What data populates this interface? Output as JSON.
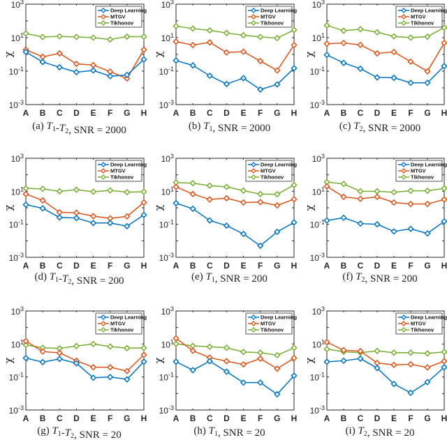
{
  "chart_data": [
    {
      "type": "line",
      "panel": "a",
      "caption": {
        "prefix": "(a) ",
        "var": "T1-T2",
        "suffix": ", SNR = 2000"
      },
      "ylabel": "χ",
      "yscale": "log",
      "ylim": [
        0.001,
        1000
      ],
      "yticks": [
        "10^-3",
        "10^-1",
        "10^1",
        "10^3"
      ],
      "categories": [
        "A",
        "B",
        "C",
        "D",
        "E",
        "F",
        "G",
        "H"
      ],
      "legend_position": "top-right",
      "series": [
        {
          "name": "Deep Learning",
          "color": "#0072BD",
          "values": [
            1.4,
            0.35,
            0.17,
            0.087,
            0.11,
            0.05,
            0.059,
            0.5
          ]
        },
        {
          "name": "MTGV",
          "color": "#D95319",
          "values": [
            1.9,
            0.72,
            1.15,
            0.27,
            0.23,
            0.093,
            0.036,
            1.9
          ]
        },
        {
          "name": "Tikhonov",
          "color": "#77AC30",
          "values": [
            17.8,
            11,
            12,
            11,
            10,
            7.8,
            11.5,
            11.5
          ]
        }
      ]
    },
    {
      "type": "line",
      "panel": "b",
      "caption": {
        "prefix": "(b) ",
        "var": "T1",
        "suffix": ", SNR = 2000"
      },
      "ylabel": "χ",
      "yscale": "log",
      "ylim": [
        0.001,
        1000
      ],
      "yticks": [
        "10^-3",
        "10^-1",
        "10^1",
        "10^3"
      ],
      "categories": [
        "A",
        "B",
        "C",
        "D",
        "E",
        "F",
        "G",
        "H"
      ],
      "legend_position": "top-right",
      "series": [
        {
          "name": "Deep Learning",
          "color": "#0072BD",
          "values": [
            0.43,
            0.22,
            0.053,
            0.017,
            0.038,
            0.008,
            0.016,
            0.15
          ]
        },
        {
          "name": "MTGV",
          "color": "#D95319",
          "values": [
            5.8,
            3.6,
            5.2,
            1.3,
            1.45,
            0.4,
            0.11,
            3.6
          ]
        },
        {
          "name": "Tikhonov",
          "color": "#77AC30",
          "values": [
            49,
            35,
            27,
            19,
            14,
            11,
            9.4,
            29
          ]
        }
      ]
    },
    {
      "type": "line",
      "panel": "c",
      "caption": {
        "prefix": "(c) ",
        "var": "T2",
        "suffix": ", SNR = 2000"
      },
      "ylabel": "χ",
      "yscale": "log",
      "ylim": [
        0.001,
        1000
      ],
      "yticks": [
        "10^-3",
        "10^-1",
        "10^1",
        "10^3"
      ],
      "categories": [
        "A",
        "B",
        "C",
        "D",
        "E",
        "F",
        "G",
        "H"
      ],
      "legend_position": "top-right",
      "series": [
        {
          "name": "Deep Learning",
          "color": "#0072BD",
          "values": [
            0.93,
            0.31,
            0.14,
            0.042,
            0.04,
            0.02,
            0.02,
            0.2
          ]
        },
        {
          "name": "MTGV",
          "color": "#D95319",
          "values": [
            4.3,
            4.8,
            3.7,
            1.15,
            1.4,
            0.37,
            0.097,
            4.8
          ]
        },
        {
          "name": "Tikhonov",
          "color": "#77AC30",
          "values": [
            54,
            26,
            32,
            21,
            12,
            10,
            11.5,
            40
          ]
        }
      ]
    },
    {
      "type": "line",
      "panel": "d",
      "caption": {
        "prefix": "(d) ",
        "var": "T1-T2",
        "suffix": ", SNR = 200"
      },
      "ylabel": "χ",
      "yscale": "log",
      "ylim": [
        0.001,
        1000
      ],
      "yticks": [
        "10^-3",
        "10^-1",
        "10^1",
        "10^3"
      ],
      "categories": [
        "A",
        "B",
        "C",
        "D",
        "E",
        "F",
        "G",
        "H"
      ],
      "legend_position": "top-right",
      "series": [
        {
          "name": "Deep Learning",
          "color": "#0072BD",
          "values": [
            1.55,
            0.93,
            0.26,
            0.24,
            0.12,
            0.12,
            0.077,
            0.37
          ]
        },
        {
          "name": "MTGV",
          "color": "#D95319",
          "values": [
            6.8,
            2.8,
            0.53,
            0.5,
            0.31,
            0.23,
            0.3,
            2.1
          ]
        },
        {
          "name": "Tikhonov",
          "color": "#77AC30",
          "values": [
            15,
            14,
            10,
            12.5,
            9.4,
            11.4,
            8.8,
            9.4
          ]
        }
      ]
    },
    {
      "type": "line",
      "panel": "e",
      "caption": {
        "prefix": "(e) ",
        "var": "T1",
        "suffix": ", SNR = 200"
      },
      "ylabel": "χ",
      "yscale": "log",
      "ylim": [
        0.001,
        1000
      ],
      "yticks": [
        "10^-3",
        "10^-1",
        "10^1",
        "10^3"
      ],
      "categories": [
        "A",
        "B",
        "C",
        "D",
        "E",
        "F",
        "G",
        "H"
      ],
      "legend_position": "top-right",
      "series": [
        {
          "name": "Deep Learning",
          "color": "#0072BD",
          "values": [
            1.9,
            0.87,
            0.17,
            0.083,
            0.026,
            0.005,
            0.035,
            0.13
          ]
        },
        {
          "name": "MTGV",
          "color": "#D95319",
          "values": [
            18.5,
            6.8,
            3.2,
            3.8,
            2.1,
            2.2,
            1.4,
            3.3
          ]
        },
        {
          "name": "Tikhonov",
          "color": "#77AC30",
          "values": [
            34,
            31,
            22,
            18.5,
            11,
            6.8,
            6.6,
            24
          ]
        }
      ]
    },
    {
      "type": "line",
      "panel": "f",
      "caption": {
        "prefix": "(f) ",
        "var": "T2",
        "suffix": ", SNR = 200"
      },
      "ylabel": "χ",
      "yscale": "log",
      "ylim": [
        0.001,
        1000
      ],
      "yticks": [
        "10^-3",
        "10^-1",
        "10^1",
        "10^3"
      ],
      "categories": [
        "A",
        "B",
        "C",
        "D",
        "E",
        "F",
        "G",
        "H"
      ],
      "legend_position": "top-right",
      "series": [
        {
          "name": "Deep Learning",
          "color": "#0072BD",
          "values": [
            0.17,
            0.25,
            0.11,
            0.1,
            0.037,
            0.053,
            0.028,
            0.15
          ]
        },
        {
          "name": "MTGV",
          "color": "#D95319",
          "values": [
            20,
            4.6,
            3.5,
            4.6,
            2.1,
            1.7,
            1.7,
            3.2
          ]
        },
        {
          "name": "Tikhonov",
          "color": "#77AC30",
          "values": [
            36,
            28,
            10,
            10,
            8.8,
            10.7,
            10.7,
            15
          ]
        }
      ]
    },
    {
      "type": "line",
      "panel": "g",
      "caption": {
        "prefix": "(g) ",
        "var": "T1-T2",
        "suffix": ", SNR = 20"
      },
      "ylabel": "χ",
      "yscale": "log",
      "ylim": [
        0.001,
        1000
      ],
      "yticks": [
        "10^-3",
        "10^-1",
        "10^1",
        "10^3"
      ],
      "categories": [
        "A",
        "B",
        "C",
        "D",
        "E",
        "F",
        "G",
        "H"
      ],
      "legend_position": "top-right",
      "series": [
        {
          "name": "Deep Learning",
          "color": "#0072BD",
          "values": [
            1.4,
            0.8,
            1.25,
            0.68,
            0.09,
            0.1,
            0.072,
            0.85
          ]
        },
        {
          "name": "MTGV",
          "color": "#D95319",
          "values": [
            15,
            3.5,
            2.9,
            0.97,
            0.39,
            0.39,
            0.23,
            2.2
          ]
        },
        {
          "name": "Tikhonov",
          "color": "#77AC30",
          "values": [
            8.8,
            5.9,
            5.4,
            7.5,
            10,
            7,
            5.6,
            5.8
          ]
        }
      ]
    },
    {
      "type": "line",
      "panel": "h",
      "caption": {
        "prefix": "(h) ",
        "var": "T1",
        "suffix": ", SNR = 20"
      },
      "ylabel": "χ",
      "yscale": "log",
      "ylim": [
        0.001,
        1000
      ],
      "yticks": [
        "10^-3",
        "10^-1",
        "10^1",
        "10^3"
      ],
      "categories": [
        "A",
        "B",
        "C",
        "D",
        "E",
        "F",
        "G",
        "H"
      ],
      "legend_position": "top-right",
      "series": [
        {
          "name": "Deep Learning",
          "color": "#0072BD",
          "values": [
            0.85,
            0.26,
            0.91,
            0.21,
            0.046,
            0.046,
            0.009,
            0.12
          ]
        },
        {
          "name": "MTGV",
          "color": "#D95319",
          "values": [
            22,
            3.9,
            1.5,
            0.91,
            0.58,
            1.3,
            0.32,
            1.4
          ]
        },
        {
          "name": "Tikhonov",
          "color": "#77AC30",
          "values": [
            10.3,
            7.7,
            6.8,
            5.9,
            3.3,
            3.0,
            2.1,
            5.9
          ]
        }
      ]
    },
    {
      "type": "line",
      "panel": "i",
      "caption": {
        "prefix": "(i) ",
        "var": "T2",
        "suffix": ", SNR = 20"
      },
      "ylabel": "χ",
      "yscale": "log",
      "ylim": [
        0.001,
        1000
      ],
      "yticks": [
        "10^-3",
        "10^-1",
        "10^1",
        "10^3"
      ],
      "categories": [
        "A",
        "B",
        "C",
        "D",
        "E",
        "F",
        "G",
        "H"
      ],
      "legend_position": "top-right",
      "series": [
        {
          "name": "Deep Learning",
          "color": "#0072BD",
          "values": [
            0.83,
            0.97,
            1.3,
            0.35,
            0.038,
            0.011,
            0.049,
            0.39
          ]
        },
        {
          "name": "MTGV",
          "color": "#D95319",
          "values": [
            13,
            4.2,
            3.7,
            0.71,
            0.54,
            0.59,
            0.38,
            0.91
          ]
        },
        {
          "name": "Tikhonov",
          "color": "#77AC30",
          "values": [
            4.9,
            3.4,
            3.0,
            3.8,
            3.0,
            3.0,
            2.7,
            3.3
          ]
        }
      ]
    }
  ]
}
